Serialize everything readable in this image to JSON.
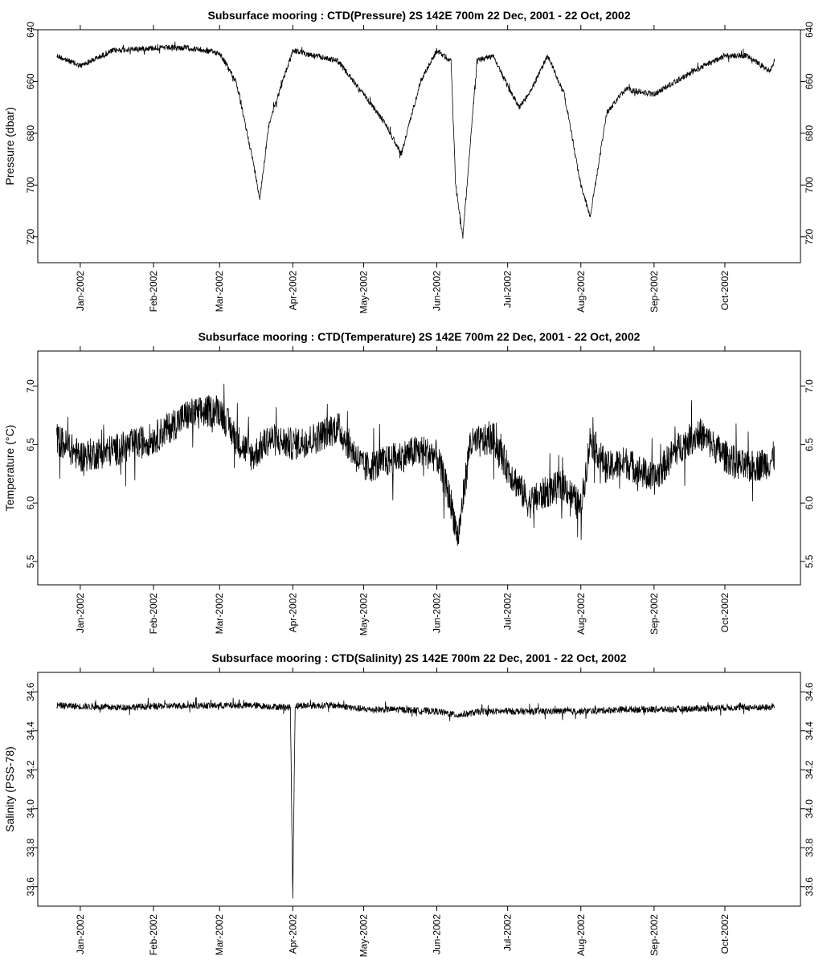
{
  "x_ticks": [
    "Jan-2002",
    "Feb-2002",
    "Mar-2002",
    "Apr-2002",
    "May-2002",
    "Jun-2002",
    "Jul-2002",
    "Aug-2002",
    "Sep-2002",
    "Oct-2002"
  ],
  "chart_data": [
    {
      "type": "line",
      "title": "Subsurface mooring : CTD(Pressure)  2S 142E   700m  22 Dec, 2001 - 22 Oct, 2002",
      "xlabel": "",
      "ylabel": "Pressure (dbar)",
      "reversed_y": true,
      "ylim": [
        640,
        730
      ],
      "xlim": [
        "2001-12-14",
        "2002-11-02"
      ],
      "y_ticks": [
        "640",
        "660",
        "680",
        "700",
        "720"
      ],
      "series": [
        {
          "x": [
            "2001-12-22",
            "2002-01-01",
            "2002-01-15",
            "2002-02-01",
            "2002-02-15",
            "2002-03-01",
            "2002-03-08",
            "2002-03-15",
            "2002-03-18",
            "2002-03-22",
            "2002-04-01",
            "2002-04-10",
            "2002-04-20",
            "2002-05-01",
            "2002-05-10",
            "2002-05-17",
            "2002-05-25",
            "2002-06-01",
            "2002-06-07",
            "2002-06-09",
            "2002-06-12",
            "2002-06-18",
            "2002-06-25",
            "2002-07-01",
            "2002-07-06",
            "2002-07-10",
            "2002-07-18",
            "2002-07-25",
            "2002-08-01",
            "2002-08-05",
            "2002-08-12",
            "2002-08-20",
            "2002-09-01",
            "2002-09-10",
            "2002-09-20",
            "2002-10-01",
            "2002-10-10",
            "2002-10-20",
            "2002-10-22"
          ],
          "values": [
            650,
            654,
            648,
            647,
            647,
            649,
            660,
            690,
            705,
            676,
            648,
            650,
            652,
            665,
            676,
            688,
            660,
            648,
            652,
            700,
            720,
            652,
            650,
            662,
            670,
            665,
            650,
            665,
            700,
            712,
            672,
            663,
            665,
            660,
            655,
            650,
            650,
            656,
            652
          ]
        }
      ]
    },
    {
      "type": "line",
      "title": "Subsurface mooring : CTD(Temperature)  2S 142E   700m  22 Dec, 2001 - 22 Oct, 2002",
      "xlabel": "",
      "ylabel": "Temperature (°C)",
      "ylim": [
        5.3,
        7.3
      ],
      "xlim": [
        "2001-12-14",
        "2002-11-02"
      ],
      "y_ticks": [
        "5.5",
        "6.0",
        "6.5",
        "7.0"
      ],
      "series": [
        {
          "x": [
            "2001-12-22",
            "2002-01-01",
            "2002-01-15",
            "2002-02-01",
            "2002-02-15",
            "2002-03-01",
            "2002-03-08",
            "2002-03-15",
            "2002-03-22",
            "2002-04-01",
            "2002-04-10",
            "2002-04-20",
            "2002-05-01",
            "2002-05-10",
            "2002-05-17",
            "2002-05-25",
            "2002-06-01",
            "2002-06-07",
            "2002-06-10",
            "2002-06-15",
            "2002-06-25",
            "2002-07-01",
            "2002-07-10",
            "2002-07-18",
            "2002-07-25",
            "2002-08-01",
            "2002-08-05",
            "2002-08-12",
            "2002-08-20",
            "2002-09-01",
            "2002-09-10",
            "2002-09-20",
            "2002-10-01",
            "2002-10-10",
            "2002-10-20",
            "2002-10-22"
          ],
          "values": [
            6.55,
            6.4,
            6.45,
            6.55,
            6.75,
            6.8,
            6.55,
            6.4,
            6.55,
            6.5,
            6.55,
            6.65,
            6.3,
            6.35,
            6.4,
            6.45,
            6.4,
            6.0,
            5.7,
            6.5,
            6.55,
            6.3,
            6.0,
            6.1,
            6.15,
            5.95,
            6.55,
            6.3,
            6.35,
            6.2,
            6.45,
            6.6,
            6.4,
            6.3,
            6.35,
            6.4
          ]
        }
      ]
    },
    {
      "type": "line",
      "title": "Subsurface mooring : CTD(Salinity) 2S 142E   700m  22 Dec, 2001 - 22 Oct, 2002",
      "xlabel": "",
      "ylabel": "Salinity (PSS-78)",
      "ylim": [
        33.5,
        34.7
      ],
      "xlim": [
        "2001-12-14",
        "2002-11-02"
      ],
      "y_ticks": [
        "33.6",
        "33.8",
        "34.0",
        "34.2",
        "34.4",
        "34.6"
      ],
      "series": [
        {
          "x": [
            "2001-12-22",
            "2002-01-15",
            "2002-02-15",
            "2002-03-15",
            "2002-03-31",
            "2002-04-01",
            "2002-04-02",
            "2002-04-20",
            "2002-05-01",
            "2002-05-15",
            "2002-06-01",
            "2002-06-10",
            "2002-06-20",
            "2002-07-10",
            "2002-08-01",
            "2002-08-20",
            "2002-09-10",
            "2002-10-01",
            "2002-10-20",
            "2002-10-22"
          ],
          "values": [
            34.53,
            34.52,
            34.53,
            34.53,
            34.52,
            33.55,
            34.53,
            34.53,
            34.51,
            34.51,
            34.5,
            34.48,
            34.5,
            34.5,
            34.5,
            34.51,
            34.51,
            34.52,
            34.52,
            34.53
          ]
        }
      ]
    }
  ]
}
